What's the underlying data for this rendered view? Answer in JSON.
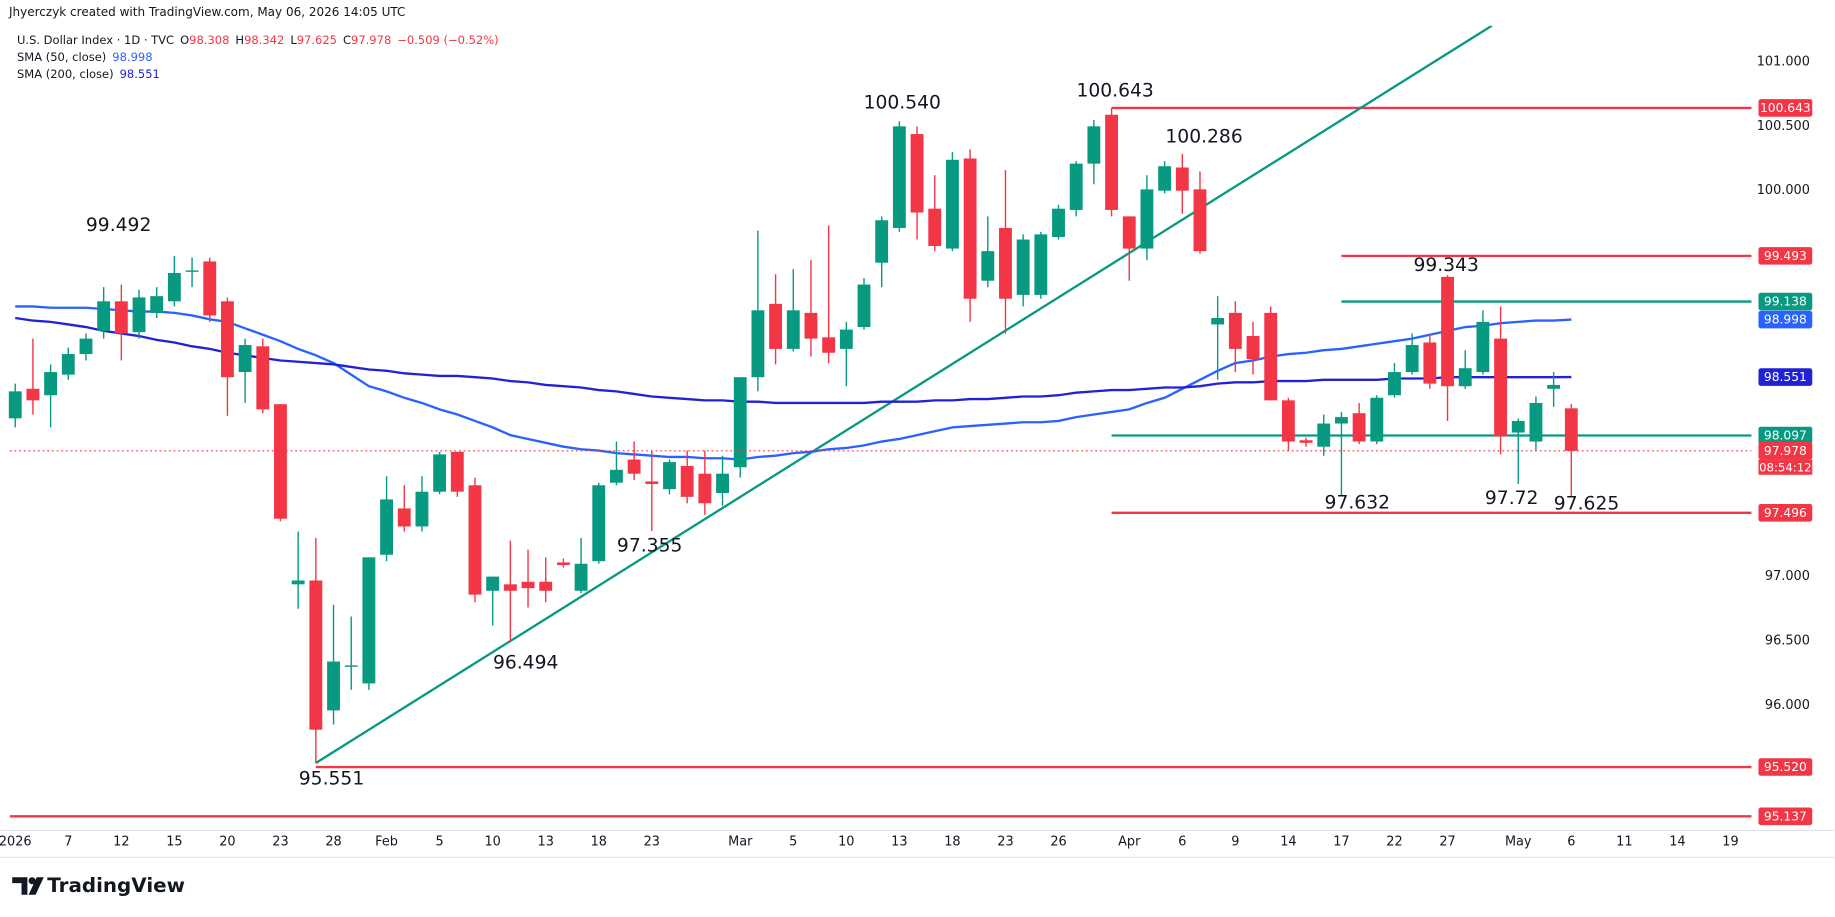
{
  "header": {
    "credit": "Jhyerczyk created with TradingView.com, May 06, 2026 14:05 UTC"
  },
  "footer": {
    "logo": "TradingView"
  },
  "chart_data": {
    "type": "candlestick",
    "title": "U.S. Dollar Index · 1D · TVC",
    "ohlc_labels": [
      "O",
      "H",
      "L",
      "C"
    ],
    "change": "−0.509 (−0.52%)",
    "countdown": "08:54:12",
    "up_color": "#089981",
    "down_color": "#f23645",
    "trendline_color": "#089981",
    "categories": [
      "2026",
      null,
      null,
      "7",
      null,
      null,
      "12",
      null,
      null,
      "15",
      null,
      null,
      "20",
      null,
      null,
      "23",
      null,
      null,
      "28",
      null,
      null,
      "Feb",
      null,
      null,
      "5",
      null,
      null,
      "10",
      null,
      null,
      "13",
      null,
      null,
      "18",
      null,
      null,
      "23",
      null,
      null,
      null,
      null,
      "Mar",
      null,
      null,
      "5",
      null,
      null,
      "10",
      null,
      null,
      "13",
      null,
      null,
      "18",
      null,
      null,
      "23",
      null,
      null,
      "26",
      null,
      null,
      null,
      "Apr",
      null,
      null,
      "6",
      null,
      null,
      "9",
      null,
      null,
      "14",
      null,
      null,
      "17",
      null,
      null,
      "22",
      null,
      null,
      "27",
      null,
      null,
      null,
      "May",
      null,
      null,
      "6",
      null,
      null,
      "11",
      null,
      null,
      "14",
      null,
      null,
      "19"
    ],
    "open": [
      98.23,
      98.46,
      98.41,
      98.57,
      98.73,
      98.91,
      99.14,
      98.9,
      99.05,
      99.14,
      99.37,
      99.45,
      99.14,
      98.59,
      98.79,
      98.34,
      96.94,
      96.97,
      95.96,
      96.3,
      96.17,
      97.17,
      97.53,
      97.39,
      97.66,
      97.97,
      97.71,
      96.89,
      96.94,
      96.96,
      96.96,
      97.11,
      96.89,
      97.12,
      97.73,
      97.91,
      97.74,
      97.68,
      97.86,
      97.8,
      97.65,
      97.85,
      98.55,
      99.12,
      98.77,
      99.05,
      98.86,
      98.77,
      98.94,
      99.44,
      99.71,
      100.44,
      99.86,
      99.55,
      100.25,
      99.3,
      99.71,
      99.19,
      99.19,
      99.64,
      99.85,
      100.21,
      100.59,
      99.8,
      99.55,
      100.0,
      100.18,
      100.01,
      98.96,
      99.05,
      98.87,
      99.05,
      98.37,
      98.06,
      98.01,
      98.19,
      98.27,
      98.05,
      98.41,
      98.59,
      98.82,
      99.33,
      98.48,
      98.59,
      98.85,
      98.12,
      98.05,
      98.46,
      98.308,
      null,
      null,
      null,
      null,
      null,
      null,
      null,
      null,
      null
    ],
    "high": [
      98.5,
      98.85,
      98.65,
      98.78,
      98.89,
      99.25,
      99.27,
      99.23,
      99.25,
      99.492,
      99.48,
      99.48,
      99.17,
      98.85,
      98.85,
      98.34,
      97.35,
      97.3,
      96.78,
      96.69,
      97.15,
      97.78,
      97.71,
      97.78,
      97.97,
      97.97,
      97.77,
      97.0,
      97.28,
      97.21,
      97.15,
      97.14,
      97.3,
      97.73,
      98.05,
      98.05,
      97.98,
      97.91,
      97.98,
      97.98,
      97.94,
      98.55,
      99.69,
      99.35,
      99.39,
      99.46,
      99.73,
      98.98,
      99.32,
      99.8,
      100.54,
      100.5,
      100.12,
      100.3,
      100.32,
      99.8,
      100.16,
      99.66,
      99.68,
      99.89,
      100.23,
      100.55,
      100.643,
      99.8,
      100.12,
      100.23,
      100.286,
      100.15,
      99.18,
      99.14,
      98.98,
      99.1,
      98.39,
      98.08,
      98.26,
      98.28,
      98.35,
      98.41,
      98.66,
      98.89,
      98.89,
      99.343,
      98.76,
      99.07,
      99.1,
      98.23,
      98.4,
      98.59,
      98.342,
      null,
      null,
      null,
      null,
      null,
      null,
      null,
      null,
      null
    ],
    "low": [
      98.16,
      98.26,
      98.16,
      98.53,
      98.68,
      98.85,
      98.68,
      98.85,
      99.01,
      99.1,
      99.25,
      98.98,
      98.25,
      98.35,
      98.27,
      97.43,
      96.75,
      95.551,
      95.85,
      96.12,
      96.12,
      97.12,
      97.35,
      97.35,
      97.64,
      97.62,
      96.8,
      96.62,
      96.494,
      96.76,
      96.8,
      97.07,
      96.87,
      97.1,
      97.71,
      97.75,
      97.355,
      97.64,
      97.57,
      97.48,
      97.55,
      97.77,
      98.44,
      98.65,
      98.75,
      98.71,
      98.66,
      98.48,
      98.92,
      99.25,
      99.68,
      99.62,
      99.53,
      99.53,
      98.98,
      99.25,
      98.89,
      99.1,
      99.16,
      99.62,
      99.8,
      100.05,
      99.8,
      99.3,
      99.46,
      99.98,
      99.82,
      99.51,
      98.53,
      98.59,
      98.57,
      98.37,
      97.98,
      98.01,
      97.94,
      97.632,
      98.03,
      98.03,
      98.39,
      98.57,
      98.46,
      98.21,
      98.46,
      98.57,
      97.95,
      97.72,
      97.98,
      98.32,
      97.625,
      null,
      null,
      null,
      null,
      null,
      null,
      null,
      null,
      null
    ],
    "close": [
      98.44,
      98.37,
      98.59,
      98.73,
      98.85,
      99.14,
      98.89,
      99.17,
      99.18,
      99.36,
      99.38,
      99.03,
      98.55,
      98.8,
      98.3,
      97.45,
      96.97,
      95.81,
      96.34,
      96.31,
      97.15,
      97.6,
      97.39,
      97.66,
      97.95,
      97.66,
      96.86,
      97.0,
      96.89,
      96.91,
      96.89,
      97.09,
      97.1,
      97.71,
      97.83,
      97.8,
      97.72,
      97.89,
      97.62,
      97.57,
      97.8,
      98.55,
      99.07,
      98.77,
      99.07,
      98.85,
      98.74,
      98.92,
      99.27,
      99.77,
      100.5,
      99.83,
      99.57,
      100.24,
      99.16,
      99.53,
      99.16,
      99.62,
      99.66,
      99.86,
      100.21,
      100.5,
      99.85,
      99.55,
      100.01,
      100.19,
      100.0,
      99.53,
      99.01,
      98.77,
      98.69,
      98.37,
      98.05,
      98.04,
      98.19,
      98.24,
      98.05,
      98.39,
      98.59,
      98.8,
      98.5,
      98.48,
      98.62,
      98.98,
      98.09,
      98.21,
      98.35,
      98.49,
      97.978,
      null,
      null,
      null,
      null,
      null,
      null,
      null,
      null,
      null
    ],
    "series": [
      {
        "name": "SMA (50, close)",
        "color": "#2962ff",
        "values": [
          99.1,
          99.1,
          99.09,
          99.09,
          99.09,
          99.08,
          99.07,
          99.06,
          99.06,
          99.05,
          99.03,
          99.0,
          98.98,
          98.93,
          98.88,
          98.83,
          98.77,
          98.72,
          98.66,
          98.57,
          98.48,
          98.44,
          98.39,
          98.35,
          98.3,
          98.26,
          98.21,
          98.16,
          98.1,
          98.07,
          98.04,
          98.01,
          97.99,
          97.98,
          97.96,
          97.95,
          97.94,
          97.93,
          97.93,
          97.92,
          97.92,
          97.91,
          97.93,
          97.94,
          97.96,
          97.97,
          97.99,
          98.0,
          98.02,
          98.05,
          98.07,
          98.1,
          98.13,
          98.16,
          98.17,
          98.18,
          98.19,
          98.2,
          98.2,
          98.21,
          98.24,
          98.26,
          98.28,
          98.3,
          98.35,
          98.39,
          98.46,
          98.53,
          98.6,
          98.66,
          98.68,
          98.71,
          98.73,
          98.74,
          98.76,
          98.77,
          98.79,
          98.81,
          98.83,
          98.85,
          98.88,
          98.91,
          98.94,
          98.95,
          98.97,
          98.98,
          98.99,
          98.99,
          98.998,
          null,
          null,
          null,
          null,
          null,
          null,
          null,
          null,
          null
        ]
      },
      {
        "name": "SMA (200, close)",
        "color": "#2121d6",
        "values": [
          99.01,
          98.99,
          98.98,
          98.96,
          98.94,
          98.91,
          98.89,
          98.87,
          98.84,
          98.82,
          98.79,
          98.77,
          98.74,
          98.72,
          98.7,
          98.68,
          98.67,
          98.66,
          98.65,
          98.63,
          98.61,
          98.6,
          98.58,
          98.57,
          98.56,
          98.56,
          98.55,
          98.54,
          98.52,
          98.51,
          98.49,
          98.48,
          98.47,
          98.45,
          98.44,
          98.42,
          98.4,
          98.39,
          98.38,
          98.37,
          98.37,
          98.36,
          98.36,
          98.35,
          98.35,
          98.35,
          98.35,
          98.35,
          98.35,
          98.36,
          98.36,
          98.36,
          98.37,
          98.37,
          98.38,
          98.38,
          98.39,
          98.4,
          98.4,
          98.41,
          98.43,
          98.44,
          98.45,
          98.45,
          98.46,
          98.47,
          98.47,
          98.48,
          98.5,
          98.51,
          98.51,
          98.52,
          98.52,
          98.52,
          98.53,
          98.53,
          98.53,
          98.53,
          98.54,
          98.54,
          98.54,
          98.55,
          98.55,
          98.55,
          98.55,
          98.55,
          98.55,
          98.55,
          98.551,
          null,
          null,
          null,
          null,
          null,
          null,
          null,
          null,
          null
        ]
      }
    ],
    "levels": [
      {
        "value": 100.643,
        "color": "#f23645"
      },
      {
        "value": 99.493,
        "color": "#f23645"
      },
      {
        "value": 99.138,
        "color": "#089981"
      },
      {
        "value": 98.097,
        "color": "#089981"
      },
      {
        "value": 97.496,
        "color": "#f23645"
      },
      {
        "value": 95.52,
        "label": "95.520",
        "color": "#f23645"
      },
      {
        "value": 95.137,
        "color": "#f23645"
      }
    ],
    "annotations": [
      "99.492",
      "100.540",
      "100.643",
      "100.286",
      "99.343",
      "97.632",
      "97.72",
      "97.625",
      "97.355",
      "96.494",
      "95.551"
    ],
    "ylim": [
      95.027,
      101.282
    ],
    "yticks": [
      {
        "value": 101,
        "label": "101.000"
      },
      {
        "value": 100.5,
        "label": "100.500"
      },
      {
        "value": 100,
        "label": "100.000"
      },
      {
        "value": 97,
        "label": "97.000"
      },
      {
        "value": 96.5,
        "label": "96.500"
      },
      {
        "value": 96,
        "label": "96.000"
      }
    ],
    "grid": false
  }
}
